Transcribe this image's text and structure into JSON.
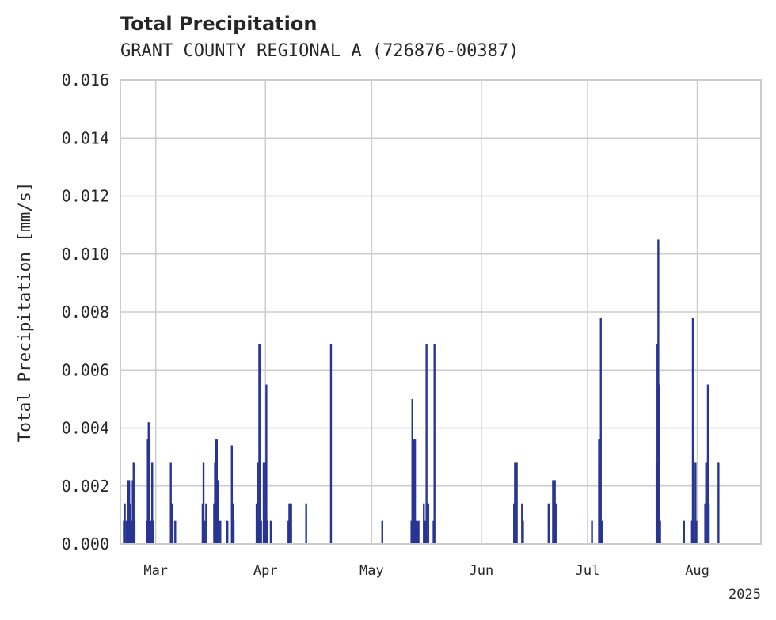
{
  "chart_data": {
    "type": "bar",
    "title": "Total Precipitation",
    "subtitle": "GRANT COUNTY REGIONAL A (726876-00387)",
    "xlabel": "",
    "ylabel": "Total Precipitation [mm/s]",
    "year_label": "2025",
    "ylim": [
      0,
      0.016
    ],
    "yticks": [
      "0.000",
      "0.002",
      "0.004",
      "0.006",
      "0.008",
      "0.010",
      "0.012",
      "0.014",
      "0.016"
    ],
    "xlim": [
      "2025-02-19",
      "2025-08-19"
    ],
    "xticks": [
      {
        "date": "2025-03-01",
        "label": "Mar"
      },
      {
        "date": "2025-04-01",
        "label": "Apr"
      },
      {
        "date": "2025-05-01",
        "label": "May"
      },
      {
        "date": "2025-06-01",
        "label": "Jun"
      },
      {
        "date": "2025-07-01",
        "label": "Jul"
      },
      {
        "date": "2025-08-01",
        "label": "Aug"
      }
    ],
    "grid": true,
    "bar_color": "#283593",
    "points": [
      [
        "2025-02-20T00:00",
        0.0008
      ],
      [
        "2025-02-20T06:00",
        0.0014
      ],
      [
        "2025-02-20T18:00",
        0.0008
      ],
      [
        "2025-02-21T06:00",
        0.0022
      ],
      [
        "2025-02-21T12:00",
        0.0022
      ],
      [
        "2025-02-21T18:00",
        0.0014
      ],
      [
        "2025-02-22T06:00",
        0.0008
      ],
      [
        "2025-02-22T12:00",
        0.0022
      ],
      [
        "2025-02-22T18:00",
        0.0028
      ],
      [
        "2025-02-23T00:00",
        0.0008
      ],
      [
        "2025-02-26T12:00",
        0.0008
      ],
      [
        "2025-02-26T18:00",
        0.0036
      ],
      [
        "2025-02-27T00:00",
        0.0042
      ],
      [
        "2025-02-27T06:00",
        0.0036
      ],
      [
        "2025-02-27T12:00",
        0.0008
      ],
      [
        "2025-02-28T00:00",
        0.0028
      ],
      [
        "2025-02-28T06:00",
        0.0008
      ],
      [
        "2025-03-05T06:00",
        0.0028
      ],
      [
        "2025-03-05T12:00",
        0.0014
      ],
      [
        "2025-03-05T18:00",
        0.0008
      ],
      [
        "2025-03-06T12:00",
        0.0008
      ],
      [
        "2025-03-14T06:00",
        0.0014
      ],
      [
        "2025-03-14T12:00",
        0.0028
      ],
      [
        "2025-03-14T18:00",
        0.0008
      ],
      [
        "2025-03-15T06:00",
        0.0014
      ],
      [
        "2025-03-17T12:00",
        0.0014
      ],
      [
        "2025-03-17T18:00",
        0.0028
      ],
      [
        "2025-03-18T00:00",
        0.0036
      ],
      [
        "2025-03-18T06:00",
        0.0036
      ],
      [
        "2025-03-18T12:00",
        0.0022
      ],
      [
        "2025-03-18T18:00",
        0.0008
      ],
      [
        "2025-03-19T06:00",
        0.0008
      ],
      [
        "2025-03-21T06:00",
        0.0008
      ],
      [
        "2025-03-22T12:00",
        0.0034
      ],
      [
        "2025-03-22T18:00",
        0.0014
      ],
      [
        "2025-03-23T00:00",
        0.0008
      ],
      [
        "2025-03-29T12:00",
        0.0014
      ],
      [
        "2025-03-29T18:00",
        0.0028
      ],
      [
        "2025-03-30T00:00",
        0.0008
      ],
      [
        "2025-03-30T06:00",
        0.0069
      ],
      [
        "2025-03-30T12:00",
        0.0069
      ],
      [
        "2025-03-30T18:00",
        0.0008
      ],
      [
        "2025-03-31T12:00",
        0.0028
      ],
      [
        "2025-03-31T18:00",
        0.0008
      ],
      [
        "2025-04-01T00:00",
        0.0028
      ],
      [
        "2025-04-01T06:00",
        0.0055
      ],
      [
        "2025-04-01T12:00",
        0.0008
      ],
      [
        "2025-04-02T12:00",
        0.0008
      ],
      [
        "2025-04-07T12:00",
        0.0008
      ],
      [
        "2025-04-07T18:00",
        0.0014
      ],
      [
        "2025-04-08T00:00",
        0.0014
      ],
      [
        "2025-04-08T06:00",
        0.0014
      ],
      [
        "2025-04-12T12:00",
        0.0014
      ],
      [
        "2025-04-19T12:00",
        0.0069
      ],
      [
        "2025-05-04T00:00",
        0.0008
      ],
      [
        "2025-05-12T06:00",
        0.0008
      ],
      [
        "2025-05-12T12:00",
        0.005
      ],
      [
        "2025-05-12T18:00",
        0.0014
      ],
      [
        "2025-05-13T00:00",
        0.0036
      ],
      [
        "2025-05-13T06:00",
        0.0036
      ],
      [
        "2025-05-13T12:00",
        0.0008
      ],
      [
        "2025-05-13T18:00",
        0.0008
      ],
      [
        "2025-05-14T06:00",
        0.0008
      ],
      [
        "2025-05-15T18:00",
        0.0014
      ],
      [
        "2025-05-16T00:00",
        0.0008
      ],
      [
        "2025-05-16T12:00",
        0.0069
      ],
      [
        "2025-05-17T00:00",
        0.0014
      ],
      [
        "2025-05-18T12:00",
        0.0008
      ],
      [
        "2025-05-18T18:00",
        0.0069
      ],
      [
        "2025-06-10T06:00",
        0.0014
      ],
      [
        "2025-06-10T12:00",
        0.0028
      ],
      [
        "2025-06-10T18:00",
        0.0028
      ],
      [
        "2025-06-11T00:00",
        0.0028
      ],
      [
        "2025-06-12T12:00",
        0.0014
      ],
      [
        "2025-06-12T18:00",
        0.0008
      ],
      [
        "2025-06-20T00:00",
        0.0014
      ],
      [
        "2025-06-21T06:00",
        0.0022
      ],
      [
        "2025-06-21T12:00",
        0.0022
      ],
      [
        "2025-06-21T18:00",
        0.0022
      ],
      [
        "2025-06-22T00:00",
        0.0014
      ],
      [
        "2025-07-02T06:00",
        0.0008
      ],
      [
        "2025-07-04T06:00",
        0.0036
      ],
      [
        "2025-07-04T12:00",
        0.0028
      ],
      [
        "2025-07-04T18:00",
        0.0078
      ],
      [
        "2025-07-05T00:00",
        0.0008
      ],
      [
        "2025-07-20T12:00",
        0.0028
      ],
      [
        "2025-07-20T18:00",
        0.0069
      ],
      [
        "2025-07-21T00:00",
        0.0105
      ],
      [
        "2025-07-21T06:00",
        0.0055
      ],
      [
        "2025-07-21T12:00",
        0.0008
      ],
      [
        "2025-07-28T06:00",
        0.0008
      ],
      [
        "2025-07-30T12:00",
        0.0008
      ],
      [
        "2025-07-30T18:00",
        0.0078
      ],
      [
        "2025-07-31T00:00",
        0.0008
      ],
      [
        "2025-07-31T12:00",
        0.0028
      ],
      [
        "2025-07-31T18:00",
        0.0008
      ],
      [
        "2025-08-03T06:00",
        0.0014
      ],
      [
        "2025-08-03T12:00",
        0.0028
      ],
      [
        "2025-08-04T00:00",
        0.0055
      ],
      [
        "2025-08-04T06:00",
        0.0014
      ],
      [
        "2025-08-07T00:00",
        0.0028
      ]
    ]
  }
}
